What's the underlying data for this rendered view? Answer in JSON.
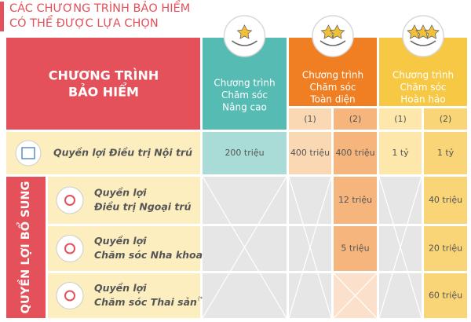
{
  "header": {
    "title_lines": [
      "CÁC CHƯƠNG TRÌNH BẢO HIỂM",
      "CÓ THỂ ĐƯỢC LỰA CHỌN"
    ]
  },
  "table": {
    "corner_lines": [
      "CHƯƠNG TRÌNH",
      "BẢO HIỂM"
    ],
    "plans": [
      {
        "name_lines": [
          "Chương trình",
          "Chăm sóc",
          "Nâng cao"
        ],
        "options": []
      },
      {
        "name_lines": [
          "Chương trình",
          "Chăm sóc",
          "Toàn diện"
        ],
        "options": [
          "(1)",
          "(2)"
        ]
      },
      {
        "name_lines": [
          "Chương trình",
          "Chăm sóc",
          "Hoàn hảo"
        ],
        "options": [
          "(1)",
          "(2)"
        ]
      }
    ],
    "main_row": {
      "label": "Quyền lợi Điều trị Nội trú",
      "values": [
        "200 triệu",
        "400 triệu",
        "400 triệu",
        "1 tỷ",
        "1 tỷ"
      ]
    },
    "group_label": "QUYỀN LỢI BỔ SUNG",
    "rows": [
      {
        "label_lines": [
          "Quyền lợi",
          "Điều trị Ngoại trú"
        ],
        "values": [
          null,
          null,
          "12 triệu",
          null,
          "40 triệu"
        ]
      },
      {
        "label_lines": [
          "Quyền lợi",
          "Chăm sóc Nha khoa"
        ],
        "values": [
          null,
          null,
          "5 triệu",
          null,
          "20 triệu"
        ]
      },
      {
        "label_lines": [
          "Quyền lợi",
          "Chăm sóc Thai sản"
        ],
        "note": "(*)",
        "values": [
          null,
          null,
          null,
          null,
          "60 triệu"
        ]
      }
    ]
  }
}
